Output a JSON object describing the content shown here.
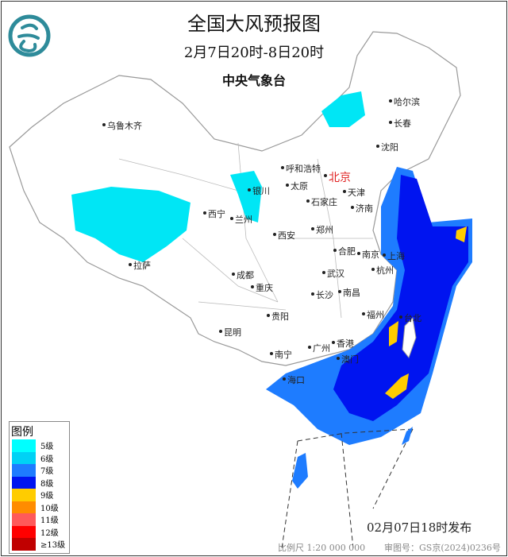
{
  "header": {
    "title": "全国大风预报图",
    "period": "2月7日20时-8日20时",
    "issuer": "中央气象台"
  },
  "logo": {
    "icon": "cma-logo-icon",
    "color": "#2e8b9a"
  },
  "legend": {
    "title": "图例",
    "items": [
      {
        "label": "5级",
        "color": "#00ffff"
      },
      {
        "label": "6级",
        "color": "#00d2f5"
      },
      {
        "label": "7级",
        "color": "#1e7cff"
      },
      {
        "label": "8级",
        "color": "#0014f0"
      },
      {
        "label": "9级",
        "color": "#ffcc00"
      },
      {
        "label": "10级",
        "color": "#ff8c00"
      },
      {
        "label": "11级",
        "color": "#ff5a5a"
      },
      {
        "label": "12级",
        "color": "#ff0000"
      },
      {
        "label": "≥13级",
        "color": "#c00000"
      }
    ]
  },
  "cities": [
    {
      "name": "哈尔滨"
    },
    {
      "name": "长春"
    },
    {
      "name": "沈阳"
    },
    {
      "name": "乌鲁木齐"
    },
    {
      "name": "呼和浩特"
    },
    {
      "name": "北京"
    },
    {
      "name": "天津"
    },
    {
      "name": "银川"
    },
    {
      "name": "太原"
    },
    {
      "name": "石家庄"
    },
    {
      "name": "济南"
    },
    {
      "name": "西宁"
    },
    {
      "name": "兰州"
    },
    {
      "name": "西安"
    },
    {
      "name": "郑州"
    },
    {
      "name": "合肥"
    },
    {
      "name": "南京"
    },
    {
      "name": "上海"
    },
    {
      "name": "拉萨"
    },
    {
      "name": "成都"
    },
    {
      "name": "武汉"
    },
    {
      "name": "杭州"
    },
    {
      "name": "重庆"
    },
    {
      "name": "长沙"
    },
    {
      "name": "南昌"
    },
    {
      "name": "福州"
    },
    {
      "name": "台北"
    },
    {
      "name": "贵阳"
    },
    {
      "name": "昆明"
    },
    {
      "name": "南宁"
    },
    {
      "name": "广州"
    },
    {
      "name": "香港"
    },
    {
      "name": "澳门"
    },
    {
      "name": "海口"
    }
  ],
  "footer": {
    "issued": "02月07日18时发布",
    "scale": "比例尺 1:20 000 000",
    "approval": "审图号：GS京(2024)0236号"
  }
}
